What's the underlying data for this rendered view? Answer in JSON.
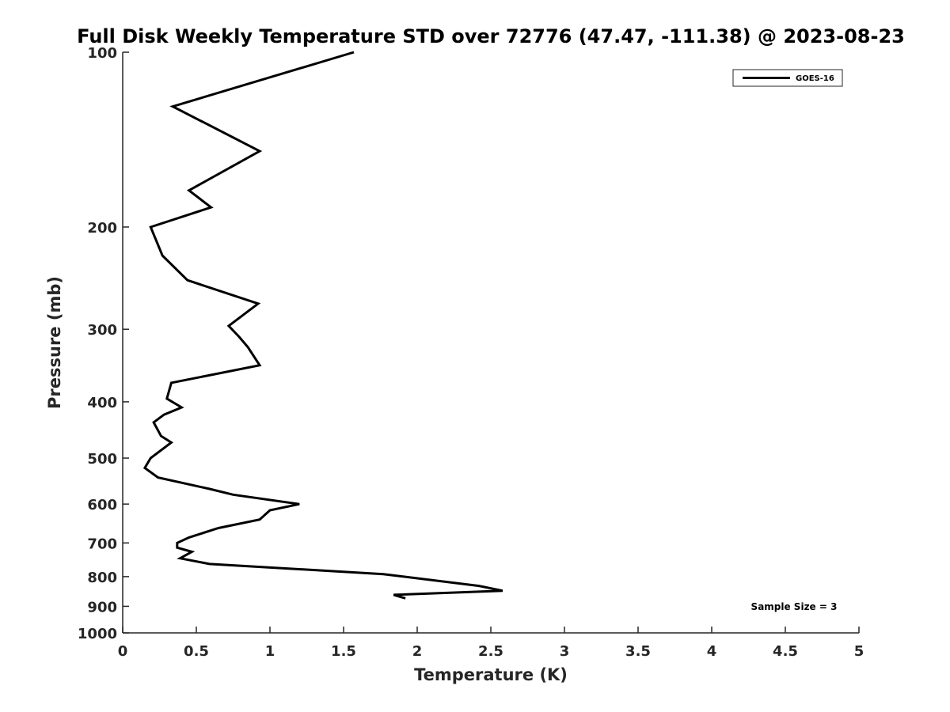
{
  "chart_data": {
    "type": "line",
    "title": "Full Disk Weekly Temperature STD over 72776 (47.47, -111.38) @ 2023-08-23",
    "xlabel": "Temperature (K)",
    "ylabel": "Pressure (mb)",
    "xlim": [
      0,
      5
    ],
    "ylim": [
      100,
      1000
    ],
    "y_scale": "log",
    "y_reversed": true,
    "x_ticks": [
      "0",
      "0.5",
      "1",
      "1.5",
      "2",
      "2.5",
      "3",
      "3.5",
      "4",
      "4.5",
      "5"
    ],
    "x_tick_values": [
      0,
      0.5,
      1,
      1.5,
      2,
      2.5,
      3,
      3.5,
      4,
      4.5,
      5
    ],
    "y_ticks": [
      "100",
      "200",
      "300",
      "400",
      "500",
      "600",
      "700",
      "800",
      "900",
      "1000"
    ],
    "y_tick_values": [
      100,
      200,
      300,
      400,
      500,
      600,
      700,
      800,
      900,
      1000
    ],
    "grid": false,
    "legend_position": "top-right",
    "series": [
      {
        "name": "GOES-16",
        "color": "#000000",
        "points": [
          [
            1.57,
            100
          ],
          [
            0.34,
            124
          ],
          [
            0.93,
            148
          ],
          [
            0.45,
            173
          ],
          [
            0.6,
            185
          ],
          [
            0.19,
            200
          ],
          [
            0.27,
            224
          ],
          [
            0.44,
            247
          ],
          [
            0.92,
            271
          ],
          [
            0.72,
            296
          ],
          [
            0.79,
            309
          ],
          [
            0.85,
            322
          ],
          [
            0.93,
            346
          ],
          [
            0.33,
            371
          ],
          [
            0.3,
            395
          ],
          [
            0.4,
            409
          ],
          [
            0.28,
            421
          ],
          [
            0.21,
            434
          ],
          [
            0.26,
            458
          ],
          [
            0.33,
            470
          ],
          [
            0.19,
            500
          ],
          [
            0.15,
            520
          ],
          [
            0.24,
            540
          ],
          [
            0.59,
            565
          ],
          [
            0.75,
            578
          ],
          [
            1.2,
            600
          ],
          [
            1.0,
            615
          ],
          [
            0.93,
            638
          ],
          [
            0.65,
            660
          ],
          [
            0.45,
            685
          ],
          [
            0.37,
            700
          ],
          [
            0.37,
            713
          ],
          [
            0.47,
            725
          ],
          [
            0.39,
            744
          ],
          [
            0.59,
            761
          ],
          [
            1.77,
            792
          ],
          [
            2.42,
            830
          ],
          [
            2.58,
            846
          ],
          [
            1.84,
            860
          ],
          [
            1.92,
            872
          ]
        ]
      }
    ],
    "annotation": "Sample Size = 3"
  }
}
